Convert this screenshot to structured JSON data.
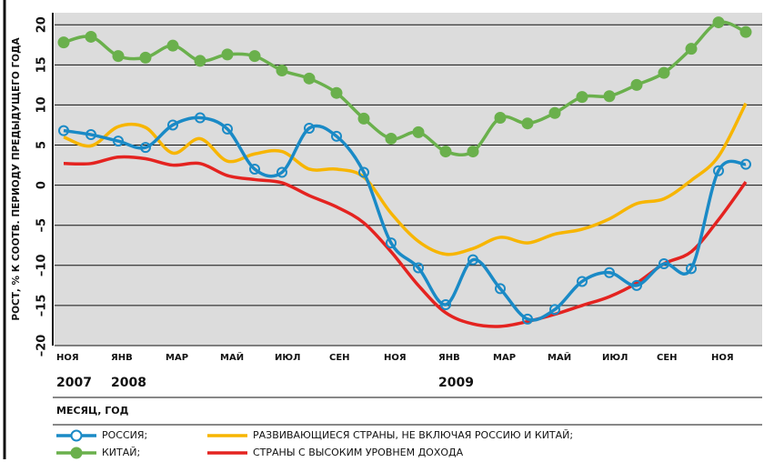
{
  "chart_data": {
    "type": "line",
    "y_label": "РОСТ, % К СООТВ. ПЕРИОДУ ПРЕДЫДУЩЕГО ГОДА",
    "x_label": "МЕСЯЦ, ГОД",
    "categories": [
      "НОЯ",
      null,
      "ЯНВ",
      null,
      "МАР",
      null,
      "МАЙ",
      null,
      "ИЮЛ",
      null,
      "СЕН",
      null,
      "НОЯ",
      null,
      "ЯНВ",
      null,
      "МАР",
      null,
      "МАЙ",
      null,
      "ИЮЛ",
      null,
      "СЕН",
      null,
      "НОЯ",
      null
    ],
    "category_years": [
      "2007",
      null,
      "2008",
      null,
      null,
      null,
      null,
      null,
      null,
      null,
      null,
      null,
      null,
      null,
      "2009",
      null,
      null,
      null,
      null,
      null,
      null,
      null,
      null,
      null,
      null,
      null
    ],
    "ylim": [
      -20,
      21.5
    ],
    "yticks": [
      {
        "value": -20,
        "label": "–20"
      },
      {
        "value": -15,
        "label": "–15"
      },
      {
        "value": -10,
        "label": "–10"
      },
      {
        "value": -5,
        "label": "–5"
      },
      0,
      5,
      10,
      15,
      20
    ],
    "grid": true,
    "series": [
      {
        "name": "РОССИЯ;",
        "color": "#1a8ac6",
        "markers": "open",
        "values": [
          6.8,
          6.3,
          5.5,
          4.7,
          7.5,
          8.4,
          7.0,
          2.0,
          1.6,
          7.1,
          6.1,
          1.6,
          -7.2,
          -10.3,
          -14.9,
          -9.3,
          -12.9,
          -16.7,
          -15.5,
          -12.0,
          -10.9,
          -12.5,
          -9.8,
          -10.4,
          1.8,
          2.6
        ]
      },
      {
        "name": "КИТАЙ;",
        "color": "#6ab04c",
        "markers": "filled",
        "values": [
          17.8,
          18.5,
          16.1,
          15.9,
          17.4,
          15.5,
          16.3,
          16.1,
          14.3,
          13.3,
          11.5,
          8.3,
          5.8,
          6.6,
          4.2,
          4.2,
          8.4,
          7.7,
          9.0,
          11.0,
          11.1,
          12.5,
          14.0,
          17.0,
          20.3,
          19.1
        ]
      },
      {
        "name": "РАЗВИВАЮЩИЕСЯ СТРАНЫ, НЕ ВКЛЮЧАЯ РОССИЮ И КИТАЙ;",
        "color": "#f7b500",
        "values": [
          6.0,
          4.9,
          7.3,
          7.2,
          4.0,
          5.8,
          3.0,
          3.9,
          4.2,
          2.0,
          2.0,
          1.0,
          -3.5,
          -7.0,
          -8.6,
          -7.9,
          -6.5,
          -7.2,
          -6.1,
          -5.5,
          -4.2,
          -2.3,
          -1.7,
          0.6,
          3.6,
          10.2
        ]
      },
      {
        "name": "СТРАНЫ С ВЫСОКИМ УРОВНЕМ ДОХОДА",
        "color": "#e42320",
        "values": [
          2.7,
          2.7,
          3.5,
          3.3,
          2.5,
          2.7,
          1.2,
          0.7,
          0.3,
          -1.3,
          -2.7,
          -4.7,
          -8.3,
          -12.5,
          -15.9,
          -17.3,
          -17.6,
          -17.0,
          -16.1,
          -15.0,
          -13.9,
          -12.2,
          -9.8,
          -8.3,
          -4.3,
          0.4
        ]
      }
    ]
  }
}
